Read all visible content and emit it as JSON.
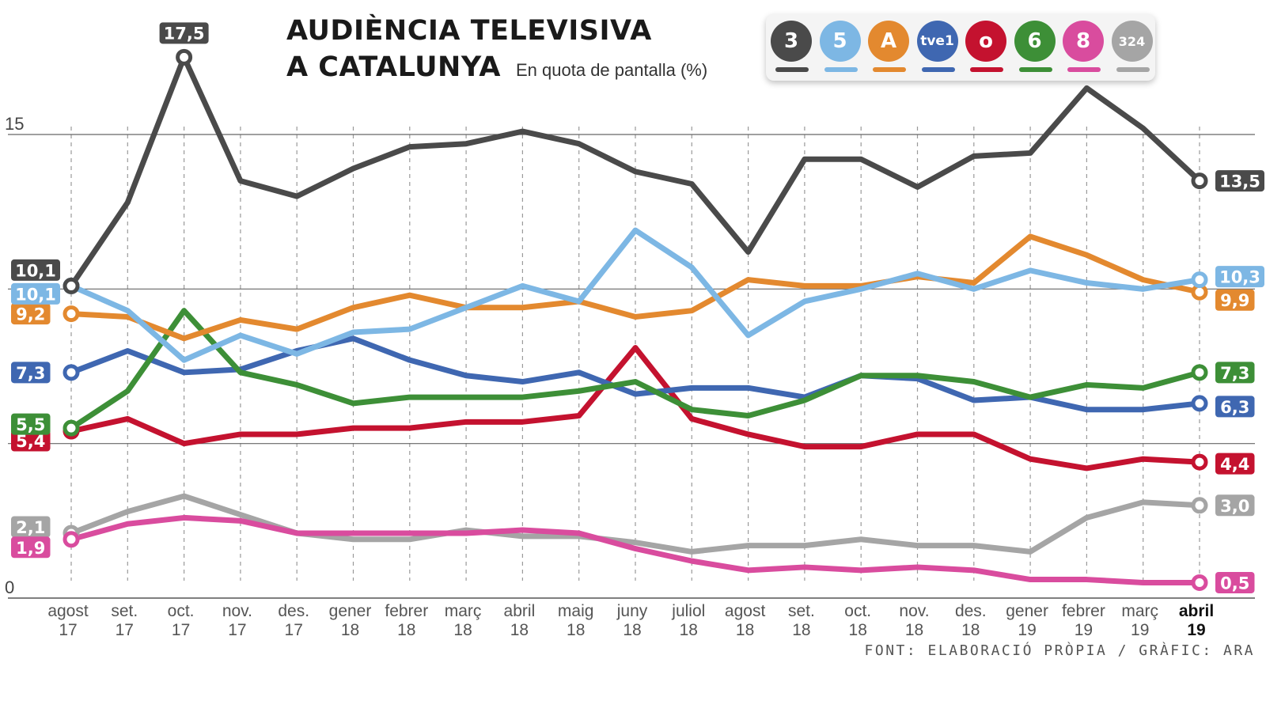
{
  "title_line1": "AUDIÈNCIA TELEVISIVA",
  "title_line2": "A CATALUNYA",
  "subtitle": "En quota de pantalla (%)",
  "source": "FONT: ELABORACIÓ PRÒPIA / GRÀFIC: ARA",
  "legend": [
    {
      "label": "3",
      "icon": "tv3-logo-icon",
      "color": "#4a4a4a"
    },
    {
      "label": "5",
      "icon": "telecinco-logo-icon",
      "color": "#7db7e4"
    },
    {
      "label": "A",
      "icon": "antena3-logo-icon",
      "color": "#e3892f"
    },
    {
      "label": "tve1",
      "icon": "tve1-logo-icon",
      "color": "#3f67b1"
    },
    {
      "label": "o",
      "icon": "cuatro-logo-icon",
      "color": "#c4122f"
    },
    {
      "label": "6",
      "icon": "lasexta-logo-icon",
      "color": "#3d8f37"
    },
    {
      "label": "8",
      "icon": "8tv-logo-icon",
      "color": "#d94c9e"
    },
    {
      "label": "324",
      "icon": "324-logo-icon",
      "color": "#a5a5a5"
    }
  ],
  "chart_data": {
    "type": "line",
    "title": "AUDIÈNCIA TELEVISIVA A CATALUNYA",
    "subtitle": "En quota de pantalla (%)",
    "ylim": [
      0,
      18
    ],
    "y_ticks": [
      0,
      15
    ],
    "y_tick_labels": [
      "0",
      "15"
    ],
    "gridlines": [
      0,
      5,
      10,
      15
    ],
    "categories": [
      [
        "agost",
        "17"
      ],
      [
        "set.",
        "17"
      ],
      [
        "oct.",
        "17"
      ],
      [
        "nov.",
        "17"
      ],
      [
        "des.",
        "17"
      ],
      [
        "gener",
        "18"
      ],
      [
        "febrer",
        "18"
      ],
      [
        "març",
        "18"
      ],
      [
        "abril",
        "18"
      ],
      [
        "maig",
        "18"
      ],
      [
        "juny",
        "18"
      ],
      [
        "juliol",
        "18"
      ],
      [
        "agost",
        "18"
      ],
      [
        "set.",
        "18"
      ],
      [
        "oct.",
        "18"
      ],
      [
        "nov.",
        "18"
      ],
      [
        "des.",
        "18"
      ],
      [
        "gener",
        "19"
      ],
      [
        "febrer",
        "19"
      ],
      [
        "març",
        "19"
      ],
      [
        "abril",
        "19"
      ]
    ],
    "series": [
      {
        "name": "324",
        "color": "#a5a5a5",
        "values": [
          2.1,
          2.8,
          3.3,
          2.7,
          2.1,
          1.9,
          1.9,
          2.2,
          2.0,
          2.0,
          1.8,
          1.5,
          1.7,
          1.7,
          1.9,
          1.7,
          1.7,
          1.5,
          2.6,
          3.1,
          3.0
        ],
        "start_label": "2,1",
        "end_label": "3,0"
      },
      {
        "name": "8tv",
        "color": "#d94c9e",
        "values": [
          1.9,
          2.4,
          2.6,
          2.5,
          2.1,
          2.1,
          2.1,
          2.1,
          2.2,
          2.1,
          1.6,
          1.2,
          0.9,
          1.0,
          0.9,
          1.0,
          0.9,
          0.6,
          0.6,
          0.5,
          0.5
        ],
        "start_label": "1,9",
        "end_label": "0,5"
      },
      {
        "name": "Cuatro",
        "color": "#c4122f",
        "values": [
          5.4,
          5.8,
          5.0,
          5.3,
          5.3,
          5.5,
          5.5,
          5.7,
          5.7,
          5.9,
          8.1,
          5.8,
          5.3,
          4.9,
          4.9,
          5.3,
          5.3,
          4.5,
          4.2,
          4.5,
          4.4
        ],
        "start_label": "5,4",
        "end_label": "4,4"
      },
      {
        "name": "tve1",
        "color": "#3f67b1",
        "values": [
          7.3,
          8.0,
          7.3,
          7.4,
          8.0,
          8.4,
          7.7,
          7.2,
          7.0,
          7.3,
          6.6,
          6.8,
          6.8,
          6.5,
          7.2,
          7.1,
          6.4,
          6.5,
          6.1,
          6.1,
          6.3
        ],
        "start_label": "7,3",
        "end_label": "6,3"
      },
      {
        "name": "laSexta",
        "color": "#3d8f37",
        "values": [
          5.5,
          6.7,
          9.3,
          7.3,
          6.9,
          6.3,
          6.5,
          6.5,
          6.5,
          6.7,
          7.0,
          6.1,
          5.9,
          6.4,
          7.2,
          7.2,
          7.0,
          6.5,
          6.9,
          6.8,
          7.3
        ],
        "start_label": "5,5",
        "end_label": "7,3"
      },
      {
        "name": "Antena 3",
        "color": "#e3892f",
        "values": [
          9.2,
          9.1,
          8.4,
          9.0,
          8.7,
          9.4,
          9.8,
          9.4,
          9.4,
          9.6,
          9.1,
          9.3,
          10.3,
          10.1,
          10.1,
          10.4,
          10.2,
          11.7,
          11.1,
          10.3,
          9.9
        ],
        "start_label": "9,2",
        "end_label": "9,9"
      },
      {
        "name": "Telecinco",
        "color": "#7db7e4",
        "values": [
          10.1,
          9.3,
          7.7,
          8.5,
          7.9,
          8.6,
          8.7,
          9.4,
          10.1,
          9.6,
          11.9,
          10.7,
          8.5,
          9.6,
          10.0,
          10.5,
          10.0,
          10.6,
          10.2,
          10.0,
          10.3
        ],
        "start_label": "10,1",
        "end_label": "10,3"
      },
      {
        "name": "TV3",
        "color": "#4a4a4a",
        "values": [
          10.1,
          12.8,
          17.5,
          13.5,
          13.0,
          13.9,
          14.6,
          14.7,
          15.1,
          14.7,
          13.8,
          13.4,
          11.2,
          14.2,
          14.2,
          13.3,
          14.3,
          14.4,
          16.5,
          15.2,
          13.5
        ],
        "start_label": "10,1",
        "end_label": "13,5"
      }
    ],
    "peak_label": {
      "series": "TV3",
      "category_index": 2,
      "text": "17,5"
    }
  }
}
